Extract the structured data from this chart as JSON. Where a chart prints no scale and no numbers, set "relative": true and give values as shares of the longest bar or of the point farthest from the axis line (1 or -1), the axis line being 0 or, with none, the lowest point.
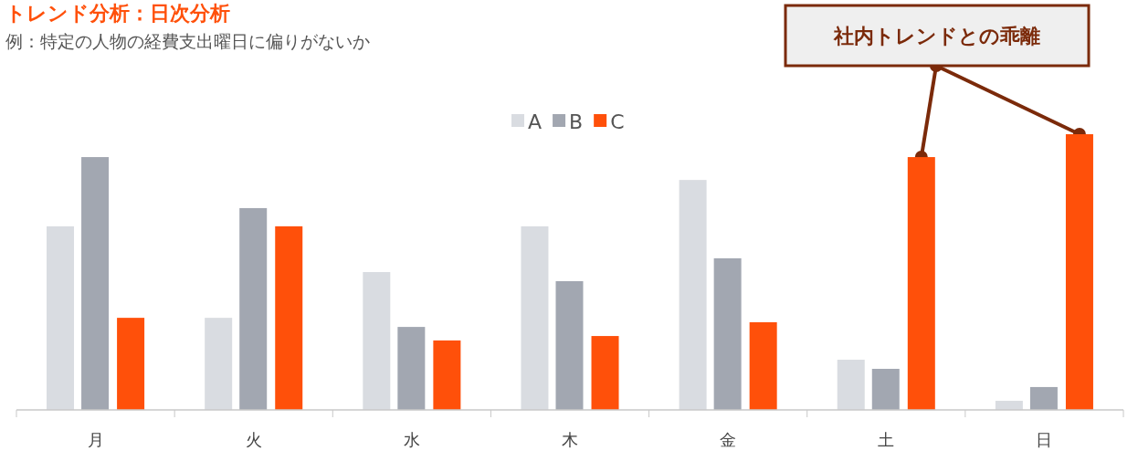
{
  "chart_data": {
    "type": "bar",
    "title": "トレンド分析：日次分析",
    "subtitle": "例：特定の人物の経費支出曜日に偏りがないか",
    "relative": true,
    "legend": "top",
    "categories": [
      "月",
      "火",
      "水",
      "木",
      "金",
      "土",
      "日"
    ],
    "series": [
      {
        "name": "A",
        "color": "#d9dce1",
        "values": [
          0.666,
          0.334,
          0.5,
          0.666,
          0.834,
          0.182,
          0.033
        ]
      },
      {
        "name": "B",
        "color": "#a2a7b1",
        "values": [
          0.917,
          0.732,
          0.301,
          0.467,
          0.55,
          0.149,
          0.083
        ]
      },
      {
        "name": "C",
        "color": "#ff500a",
        "values": [
          0.334,
          0.666,
          0.252,
          0.268,
          0.318,
          0.917,
          1
        ]
      }
    ],
    "annotations": [
      "社内トレンドとの乖離"
    ]
  }
}
